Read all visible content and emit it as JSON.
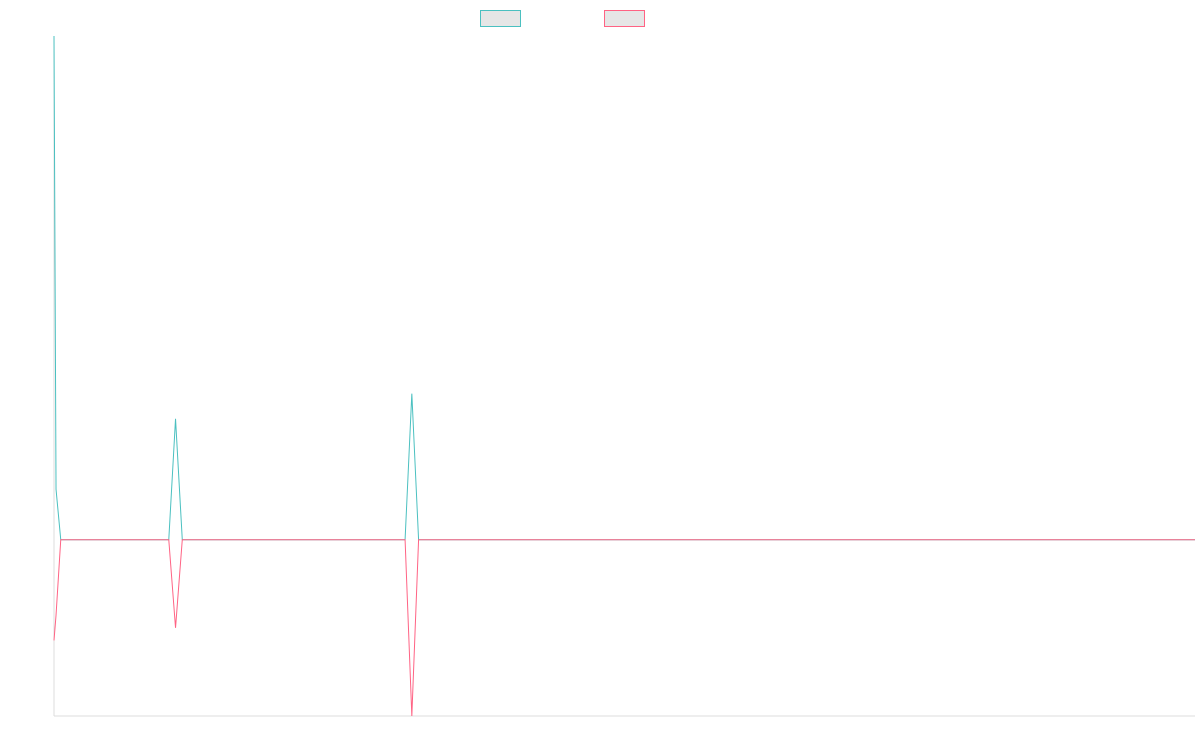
{
  "chart_data": {
    "type": "line",
    "title": "",
    "xlabel": "",
    "ylabel": "",
    "legend": {
      "position": "top-center",
      "show_labels": false
    },
    "grid": false,
    "x_count": 170,
    "ylim": [
      -3.5,
      10
    ],
    "series": [
      {
        "name": "",
        "color": "#4bc0c0",
        "points": [
          [
            0,
            10
          ],
          [
            0.3,
            1
          ],
          [
            1,
            0
          ],
          [
            17,
            0
          ],
          [
            18,
            2.4
          ],
          [
            19,
            0
          ],
          [
            52,
            0
          ],
          [
            53,
            2.9
          ],
          [
            54,
            0
          ],
          [
            169,
            0
          ]
        ]
      },
      {
        "name": "",
        "color": "#ff6384",
        "points": [
          [
            0,
            -2
          ],
          [
            0.3,
            -1.5
          ],
          [
            1,
            0
          ],
          [
            17,
            0
          ],
          [
            18,
            -1.75
          ],
          [
            19,
            0
          ],
          [
            52,
            0
          ],
          [
            53,
            -3.5
          ],
          [
            54,
            0
          ],
          [
            169,
            0
          ]
        ]
      }
    ]
  }
}
